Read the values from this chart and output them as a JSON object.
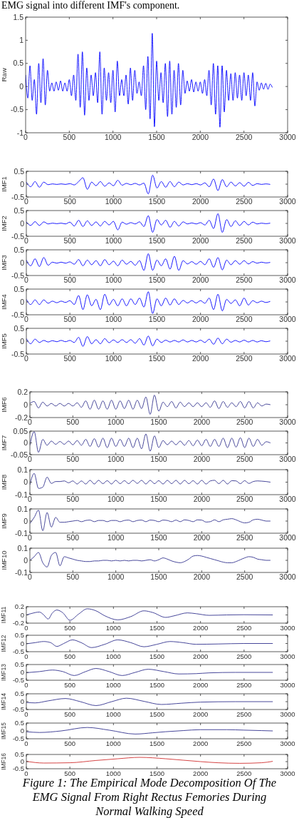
{
  "chart_data": [
    {
      "type": "line",
      "ylabel": "Raw",
      "annotations": [
        "EMG signal into different IMF's component."
      ],
      "color": "#0000ff",
      "xlim": [
        0,
        3000
      ],
      "ylim": [
        -1,
        1.5
      ],
      "xticks": [
        0,
        500,
        1000,
        1500,
        2000,
        2500,
        3000
      ],
      "yticks": [
        -1,
        -0.5,
        0,
        0.5,
        1,
        1.5
      ],
      "x": [
        0,
        25,
        50,
        75,
        100,
        125,
        150,
        175,
        200,
        225,
        250,
        275,
        300,
        325,
        350,
        375,
        400,
        425,
        450,
        475,
        500,
        525,
        550,
        575,
        600,
        625,
        650,
        675,
        700,
        725,
        750,
        775,
        800,
        825,
        850,
        875,
        900,
        925,
        950,
        975,
        1000,
        1025,
        1050,
        1075,
        1100,
        1125,
        1150,
        1175,
        1200,
        1225,
        1250,
        1275,
        1300,
        1325,
        1350,
        1375,
        1400,
        1425,
        1450,
        1475,
        1500,
        1525,
        1550,
        1575,
        1600,
        1625,
        1650,
        1675,
        1700,
        1725,
        1750,
        1775,
        1800,
        1825,
        1850,
        1875,
        1900,
        1925,
        1950,
        1975,
        2000,
        2025,
        2050,
        2075,
        2100,
        2125,
        2150,
        2175,
        2200,
        2225,
        2250,
        2275,
        2300,
        2325,
        2350,
        2375,
        2400,
        2425,
        2450,
        2475,
        2500,
        2525,
        2550,
        2575,
        2600,
        2625,
        2650,
        2675,
        2700,
        2725,
        2750,
        2775,
        2800,
        2825
      ],
      "values": [
        0.25,
        -0.25,
        0.45,
        -0.3,
        0.15,
        -0.6,
        0.5,
        -0.35,
        0.6,
        -0.4,
        0.35,
        -0.1,
        0.08,
        -0.1,
        0.1,
        -0.08,
        0.12,
        -0.1,
        0.08,
        -0.1,
        0.15,
        -0.2,
        0.25,
        -0.3,
        0.7,
        -0.45,
        0.75,
        -0.62,
        0.4,
        -0.3,
        0.25,
        -0.2,
        0.3,
        -0.35,
        0.75,
        -0.6,
        0.4,
        -0.3,
        0.3,
        -0.35,
        0.35,
        -0.55,
        0.55,
        -0.2,
        0.15,
        -0.2,
        0.25,
        -0.38,
        0.4,
        -0.3,
        0.35,
        -0.15,
        0.1,
        -0.2,
        0.45,
        -0.5,
        0.65,
        -0.7,
        1.15,
        -0.87,
        0.55,
        -0.3,
        0.3,
        -0.35,
        0.5,
        -0.65,
        0.55,
        -0.6,
        0.35,
        -0.45,
        0.5,
        -0.4,
        0.35,
        -0.15,
        0.12,
        -0.1,
        0.15,
        -0.12,
        0.1,
        -0.1,
        0.1,
        -0.15,
        0.15,
        -0.2,
        0.35,
        -0.4,
        0.5,
        -0.6,
        0.45,
        -0.88,
        0.45,
        -0.55,
        0.35,
        -0.3,
        0.28,
        -0.3,
        0.3,
        -0.25,
        0.25,
        -0.3,
        0.3,
        -0.2,
        0.25,
        -0.3,
        0.3,
        -0.42,
        0.1,
        -0.08,
        0.08,
        -0.06,
        0.07,
        -0.06,
        0.05,
        -0.02
      ]
    },
    {
      "type": "line",
      "ylabel": "IMF1",
      "color": "#0000ff",
      "xlim": [
        0,
        3000
      ],
      "ylim": [
        -0.5,
        0.5
      ],
      "xticks": [
        0,
        500,
        1000,
        1500,
        2000,
        2500,
        3000
      ],
      "yticks": [
        -0.5,
        0,
        0.5
      ],
      "x": [
        0,
        50,
        100,
        150,
        200,
        250,
        300,
        350,
        400,
        450,
        500,
        550,
        600,
        650,
        700,
        750,
        800,
        850,
        900,
        950,
        1000,
        1050,
        1100,
        1150,
        1200,
        1250,
        1300,
        1350,
        1400,
        1450,
        1500,
        1550,
        1600,
        1650,
        1700,
        1750,
        1800,
        1850,
        1900,
        1950,
        2000,
        2050,
        2100,
        2150,
        2200,
        2250,
        2300,
        2350,
        2400,
        2450,
        2500,
        2550,
        2600,
        2650,
        2700,
        2750,
        2800
      ],
      "values": [
        0.08,
        -0.1,
        0.1,
        -0.12,
        0.08,
        -0.02,
        0.01,
        -0.01,
        0.01,
        -0.01,
        0.02,
        -0.03,
        0.1,
        0.25,
        -0.2,
        0.08,
        -0.06,
        0.1,
        -0.08,
        0.05,
        -0.06,
        0.15,
        -0.04,
        0.03,
        -0.02,
        0.03,
        -0.03,
        0.04,
        -0.38,
        0.35,
        -0.15,
        0.1,
        -0.12,
        0.1,
        -0.1,
        0.08,
        -0.03,
        0.02,
        -0.02,
        0.02,
        -0.03,
        0.05,
        -0.1,
        0.2,
        -0.25,
        0.18,
        -0.1,
        0.08,
        -0.07,
        0.06,
        -0.08,
        0.07,
        -0.05,
        0.02,
        -0.01,
        0.01,
        -0.01
      ]
    },
    {
      "type": "line",
      "ylabel": "IMF2",
      "color": "#0000ff",
      "xlim": [
        0,
        3000
      ],
      "ylim": [
        -0.5,
        0.5
      ],
      "xticks": [
        0,
        500,
        1000,
        1500,
        2000,
        2500,
        3000
      ],
      "yticks": [
        -0.5,
        0,
        0.5
      ],
      "x": [
        0,
        50,
        100,
        150,
        200,
        250,
        300,
        350,
        400,
        450,
        500,
        550,
        600,
        650,
        700,
        750,
        800,
        850,
        900,
        950,
        1000,
        1050,
        1100,
        1150,
        1200,
        1250,
        1300,
        1350,
        1400,
        1450,
        1500,
        1550,
        1600,
        1650,
        1700,
        1750,
        1800,
        1850,
        1900,
        1950,
        2000,
        2050,
        2100,
        2150,
        2200,
        2250,
        2300,
        2350,
        2400,
        2450,
        2500,
        2550,
        2600,
        2650,
        2700,
        2750,
        2800
      ],
      "values": [
        0.06,
        -0.08,
        0.07,
        -0.08,
        0.06,
        -0.02,
        0.01,
        -0.01,
        0.01,
        -0.02,
        0.05,
        -0.1,
        0.12,
        -0.12,
        0.1,
        -0.08,
        0.06,
        -0.1,
        0.08,
        -0.06,
        0.08,
        -0.25,
        0.05,
        -0.03,
        0.03,
        -0.02,
        0.06,
        -0.12,
        0.3,
        -0.35,
        0.15,
        -0.06,
        0.12,
        -0.15,
        0.08,
        -0.1,
        0.06,
        -0.02,
        0.02,
        -0.02,
        0.03,
        -0.06,
        0.12,
        -0.2,
        0.38,
        -0.35,
        0.15,
        -0.12,
        0.1,
        -0.08,
        0.08,
        -0.06,
        0.05,
        -0.02,
        0.01,
        -0.01,
        0.01
      ]
    },
    {
      "type": "line",
      "ylabel": "IMF3",
      "color": "#0000ff",
      "xlim": [
        0,
        3000
      ],
      "ylim": [
        -0.5,
        0.5
      ],
      "xticks": [
        0,
        500,
        1000,
        1500,
        2000,
        2500,
        3000
      ],
      "yticks": [
        -0.5,
        0,
        0.5
      ],
      "x": [
        0,
        50,
        100,
        150,
        200,
        250,
        300,
        350,
        400,
        450,
        500,
        550,
        600,
        650,
        700,
        750,
        800,
        850,
        900,
        950,
        1000,
        1050,
        1100,
        1150,
        1200,
        1250,
        1300,
        1350,
        1400,
        1450,
        1500,
        1550,
        1600,
        1650,
        1700,
        1750,
        1800,
        1850,
        1900,
        1950,
        2000,
        2050,
        2100,
        2150,
        2200,
        2250,
        2300,
        2350,
        2400,
        2450,
        2500,
        2550,
        2600,
        2650,
        2700,
        2750,
        2800
      ],
      "values": [
        0.1,
        -0.12,
        0.15,
        -0.15,
        0.2,
        -0.1,
        0.02,
        -0.02,
        0.02,
        -0.02,
        0.03,
        -0.06,
        0.12,
        -0.12,
        0.1,
        -0.08,
        0.08,
        -0.12,
        0.12,
        -0.08,
        0.06,
        -0.12,
        0.1,
        -0.06,
        0.05,
        -0.1,
        0.08,
        -0.3,
        0.35,
        -0.3,
        0.1,
        -0.12,
        0.15,
        -0.25,
        0.25,
        -0.3,
        0.08,
        -0.05,
        0.04,
        -0.06,
        0.05,
        -0.08,
        0.15,
        -0.18,
        0.2,
        -0.28,
        0.1,
        -0.08,
        0.08,
        -0.06,
        0.08,
        -0.05,
        0.04,
        -0.02,
        0.02,
        -0.01,
        0.01
      ]
    },
    {
      "type": "line",
      "ylabel": "IMF4",
      "color": "#0000ff",
      "xlim": [
        0,
        3000
      ],
      "ylim": [
        -0.5,
        0.5
      ],
      "xticks": [
        0,
        500,
        1000,
        1500,
        2000,
        2500,
        3000
      ],
      "yticks": [
        -0.5,
        0,
        0.5
      ],
      "x": [
        0,
        50,
        100,
        150,
        200,
        250,
        300,
        350,
        400,
        450,
        500,
        550,
        600,
        650,
        700,
        750,
        800,
        850,
        900,
        950,
        1000,
        1050,
        1100,
        1150,
        1200,
        1250,
        1300,
        1350,
        1400,
        1450,
        1500,
        1550,
        1600,
        1650,
        1700,
        1750,
        1800,
        1850,
        1900,
        1950,
        2000,
        2050,
        2100,
        2150,
        2200,
        2250,
        2300,
        2350,
        2400,
        2450,
        2500,
        2550,
        2600,
        2650,
        2700,
        2750,
        2800
      ],
      "values": [
        0.1,
        -0.1,
        0.08,
        -0.1,
        0.08,
        -0.05,
        0.03,
        -0.03,
        0.03,
        -0.02,
        0.05,
        -0.1,
        0.25,
        -0.3,
        0.28,
        -0.15,
        0.1,
        -0.3,
        0.3,
        -0.12,
        0.1,
        -0.15,
        0.12,
        -0.15,
        0.12,
        -0.1,
        0.15,
        -0.2,
        0.4,
        -0.45,
        0.12,
        -0.15,
        0.15,
        -0.12,
        0.12,
        -0.1,
        0.06,
        -0.04,
        0.05,
        -0.04,
        0.05,
        -0.05,
        0.15,
        -0.3,
        0.3,
        -0.35,
        0.1,
        -0.06,
        0.08,
        -0.15,
        0.15,
        -0.12,
        0.05,
        -0.03,
        0.03,
        -0.02,
        0.02
      ]
    },
    {
      "type": "line",
      "ylabel": "IMF5",
      "color": "#0000ff",
      "xlim": [
        0,
        3000
      ],
      "ylim": [
        -0.5,
        0.5
      ],
      "xticks": [
        0,
        500,
        1000,
        1500,
        2000,
        2500,
        3000
      ],
      "yticks": [
        -0.5,
        0,
        0.5
      ],
      "x": [
        0,
        50,
        100,
        150,
        200,
        250,
        300,
        350,
        400,
        450,
        500,
        550,
        600,
        650,
        700,
        750,
        800,
        850,
        900,
        950,
        1000,
        1050,
        1100,
        1150,
        1200,
        1250,
        1300,
        1350,
        1400,
        1450,
        1500,
        1550,
        1600,
        1650,
        1700,
        1750,
        1800,
        1850,
        1900,
        1950,
        2000,
        2050,
        2100,
        2150,
        2200,
        2250,
        2300,
        2350,
        2400,
        2450,
        2500,
        2550,
        2600,
        2650,
        2700,
        2750,
        2800
      ],
      "values": [
        0.1,
        -0.1,
        0.08,
        -0.05,
        0.03,
        -0.03,
        0.02,
        -0.02,
        0.03,
        -0.02,
        0.03,
        -0.05,
        0.15,
        -0.2,
        0.18,
        -0.1,
        0.06,
        -0.1,
        0.1,
        -0.06,
        0.05,
        -0.05,
        0.06,
        -0.05,
        0.06,
        -0.08,
        0.1,
        -0.15,
        0.2,
        -0.18,
        0.08,
        -0.05,
        0.04,
        -0.03,
        0.03,
        -0.03,
        0.05,
        -0.03,
        0.03,
        -0.03,
        0.04,
        -0.05,
        0.08,
        -0.12,
        0.12,
        -0.1,
        0.08,
        -0.04,
        0.03,
        -0.03,
        0.04,
        -0.03,
        0.03,
        -0.03,
        0.02,
        -0.02,
        0.01
      ]
    },
    {
      "type": "line",
      "ylabel": "IMF6",
      "color": "#33338f",
      "xlim": [
        0,
        3000
      ],
      "ylim": [
        -0.2,
        0.2
      ],
      "xticks": [
        0,
        500,
        1000,
        1500,
        2000,
        2500,
        3000
      ],
      "yticks": [
        -0.2,
        0,
        0.2
      ],
      "x": [
        0,
        50,
        100,
        150,
        200,
        250,
        300,
        350,
        400,
        450,
        500,
        550,
        600,
        650,
        700,
        750,
        800,
        850,
        900,
        950,
        1000,
        1050,
        1100,
        1150,
        1200,
        1250,
        1300,
        1350,
        1400,
        1450,
        1500,
        1550,
        1600,
        1650,
        1700,
        1750,
        1800,
        1850,
        1900,
        1950,
        2000,
        2050,
        2100,
        2150,
        2200,
        2250,
        2300,
        2350,
        2400,
        2450,
        2500,
        2550,
        2600,
        2650,
        2700,
        2750,
        2800
      ],
      "values": [
        0.02,
        0.05,
        -0.05,
        0.04,
        -0.02,
        0.02,
        -0.02,
        0.02,
        -0.02,
        0.02,
        -0.02,
        0.03,
        -0.04,
        0.06,
        -0.07,
        0.07,
        -0.07,
        0.06,
        -0.07,
        0.07,
        -0.07,
        0.06,
        -0.06,
        0.07,
        -0.07,
        0.07,
        -0.06,
        0.12,
        -0.15,
        0.15,
        -0.1,
        0.04,
        -0.03,
        0.05,
        -0.05,
        0.04,
        -0.03,
        0.03,
        -0.03,
        0.03,
        -0.03,
        0.03,
        -0.04,
        0.06,
        -0.06,
        0.05,
        -0.04,
        0.03,
        -0.03,
        0.05,
        -0.05,
        0.05,
        -0.05,
        0.03,
        -0.02,
        0.01,
        0
      ]
    },
    {
      "type": "line",
      "ylabel": "IMF7",
      "color": "#33338f",
      "xlim": [
        0,
        3000
      ],
      "ylim": [
        -0.05,
        0.05
      ],
      "xticks": [
        0,
        500,
        1000,
        1500,
        2000,
        2500,
        3000
      ],
      "yticks": [
        -0.05,
        0,
        0.05
      ],
      "x": [
        0,
        50,
        100,
        150,
        200,
        250,
        300,
        350,
        400,
        450,
        500,
        550,
        600,
        650,
        700,
        750,
        800,
        850,
        900,
        950,
        1000,
        1050,
        1100,
        1150,
        1200,
        1250,
        1300,
        1350,
        1400,
        1450,
        1500,
        1550,
        1600,
        1650,
        1700,
        1750,
        1800,
        1850,
        1900,
        1950,
        2000,
        2050,
        2100,
        2150,
        2200,
        2250,
        2300,
        2350,
        2400,
        2450,
        2500,
        2550,
        2600,
        2650,
        2700,
        2750,
        2800
      ],
      "values": [
        -0.01,
        0.048,
        -0.04,
        0.015,
        -0.01,
        0.008,
        -0.006,
        0.006,
        -0.006,
        0.008,
        -0.008,
        0.01,
        -0.01,
        0.015,
        -0.015,
        0.018,
        -0.018,
        0.02,
        -0.02,
        0.02,
        -0.015,
        0.015,
        -0.015,
        0.02,
        -0.02,
        0.02,
        -0.025,
        0.038,
        -0.035,
        0.03,
        -0.02,
        0.01,
        -0.008,
        0.008,
        -0.008,
        0.008,
        -0.01,
        0.01,
        -0.012,
        0.012,
        -0.012,
        0.015,
        -0.015,
        0.015,
        -0.015,
        0.02,
        -0.02,
        0.02,
        -0.018,
        0.022,
        -0.02,
        0.02,
        -0.015,
        0.015,
        -0.01,
        0.005,
        0
      ]
    },
    {
      "type": "line",
      "ylabel": "IMF8",
      "color": "#33338f",
      "xlim": [
        0,
        3000
      ],
      "ylim": [
        -0.1,
        0.1
      ],
      "xticks": [
        0,
        500,
        1000,
        1500,
        2000,
        2500,
        3000
      ],
      "yticks": [
        -0.1,
        0,
        0.1
      ],
      "x": [
        0,
        50,
        100,
        150,
        200,
        250,
        300,
        350,
        400,
        450,
        500,
        550,
        600,
        650,
        700,
        750,
        800,
        850,
        900,
        950,
        1000,
        1050,
        1100,
        1150,
        1200,
        1250,
        1300,
        1350,
        1400,
        1450,
        1500,
        1550,
        1600,
        1650,
        1700,
        1750,
        1800,
        1850,
        1900,
        1950,
        2000,
        2050,
        2100,
        2150,
        2200,
        2250,
        2300,
        2350,
        2400,
        2450,
        2500,
        2550,
        2600,
        2650,
        2700,
        2750,
        2800
      ],
      "values": [
        -0.02,
        0.07,
        -0.05,
        -0.04,
        0.04,
        -0.01,
        0.005,
        0.005,
        0.01,
        -0.005,
        0.01,
        -0.015,
        0.01,
        -0.015,
        0.015,
        -0.015,
        0.015,
        -0.012,
        0.012,
        -0.015,
        0.015,
        -0.012,
        0.012,
        -0.012,
        0.015,
        -0.01,
        0.015,
        -0.015,
        0.015,
        -0.012,
        0.012,
        -0.015,
        0.015,
        -0.012,
        0.015,
        -0.015,
        0.015,
        -0.012,
        0.012,
        -0.015,
        0.015,
        -0.015,
        0.01,
        0.015,
        -0.012,
        0.015,
        -0.015,
        0.012,
        0.01,
        -0.012,
        0.012,
        -0.01,
        0.005,
        0.01,
        0.008,
        0.005,
        0
      ]
    },
    {
      "type": "line",
      "ylabel": "IMF9",
      "color": "#33338f",
      "xlim": [
        0,
        3000
      ],
      "ylim": [
        -0.1,
        0.1
      ],
      "xticks": [
        0,
        500,
        1000,
        1500,
        2000,
        2500,
        3000
      ],
      "yticks": [
        -0.1,
        0,
        0.1
      ],
      "x": [
        0,
        50,
        100,
        150,
        200,
        250,
        300,
        350,
        400,
        450,
        500,
        550,
        600,
        650,
        700,
        750,
        800,
        850,
        900,
        950,
        1000,
        1050,
        1100,
        1150,
        1200,
        1250,
        1300,
        1350,
        1400,
        1450,
        1500,
        1550,
        1600,
        1650,
        1700,
        1750,
        1800,
        1850,
        1900,
        1950,
        2000,
        2050,
        2100,
        2150,
        2200,
        2250,
        2300,
        2350,
        2400,
        2450,
        2500,
        2550,
        2600,
        2650,
        2700,
        2750,
        2800
      ],
      "values": [
        -0.02,
        0.03,
        0.09,
        -0.08,
        0.07,
        -0.05,
        0.03,
        -0.01,
        -0.01,
        -0.005,
        0,
        0.005,
        -0.005,
        0.005,
        0.008,
        -0.005,
        0.005,
        0.005,
        -0.005,
        0.005,
        0.005,
        -0.005,
        0.005,
        0.008,
        -0.005,
        0.005,
        0.008,
        -0.005,
        0.008,
        0.005,
        -0.005,
        0.008,
        0.005,
        -0.005,
        0.008,
        -0.005,
        0.01,
        0.005,
        -0.005,
        0.01,
        0.008,
        -0.008,
        -0.005,
        0.01,
        -0.005,
        0.01,
        0.015,
        0.02,
        0.01,
        -0.005,
        -0.015,
        -0.01,
        0.01,
        0.015,
        0.008,
        0,
        0
      ]
    },
    {
      "type": "line",
      "ylabel": "IMF10",
      "color": "#33338f",
      "xlim": [
        0,
        3000
      ],
      "ylim": [
        -0.1,
        0.1
      ],
      "xticks": [
        0,
        500,
        1000,
        1500,
        2000,
        2500,
        3000
      ],
      "yticks": [
        -0.1,
        0,
        0.1
      ],
      "x": [
        0,
        50,
        100,
        150,
        200,
        250,
        300,
        350,
        400,
        450,
        500,
        550,
        600,
        650,
        700,
        750,
        800,
        850,
        900,
        950,
        1000,
        1050,
        1100,
        1150,
        1200,
        1250,
        1300,
        1350,
        1400,
        1450,
        1500,
        1550,
        1600,
        1650,
        1700,
        1750,
        1800,
        1850,
        1900,
        1950,
        2000,
        2050,
        2100,
        2150,
        2200,
        2250,
        2300,
        2350,
        2400,
        2450,
        2500,
        2550,
        2600,
        2650,
        2700,
        2750,
        2800
      ],
      "values": [
        0,
        0.03,
        0.065,
        -0.02,
        -0.055,
        0.04,
        0.065,
        -0.045,
        0.03,
        0.02,
        0.01,
        0,
        -0.005,
        -0.01,
        -0.01,
        -0.005,
        -0.005,
        0,
        0,
        -0.005,
        0,
        -0.005,
        0,
        -0.005,
        0,
        0,
        -0.005,
        0,
        0.005,
        -0.005,
        0.005,
        0.02,
        0.01,
        -0.005,
        -0.015,
        -0.02,
        -0.01,
        0.01,
        0.035,
        0.04,
        0.035,
        0.025,
        0.015,
        0.005,
        -0.005,
        -0.015,
        -0.02,
        -0.02,
        -0.01,
        0.005,
        0.02,
        0.03,
        0.025,
        0.01,
        0.005,
        0,
        0
      ]
    },
    {
      "type": "line",
      "ylabel": "IMF11",
      "color": "#33338f",
      "xlim": [
        0,
        3000
      ],
      "ylim": [
        -0.2,
        0.2
      ],
      "xticks": [
        0,
        500,
        1000,
        1500,
        2000,
        2500,
        3000
      ],
      "yticks": [
        -0.2,
        0,
        0.2
      ],
      "x": [
        0,
        50,
        150,
        200,
        250,
        300,
        350,
        420,
        500,
        600,
        700,
        800,
        900,
        1050,
        1200,
        1350,
        1450,
        1600,
        1700,
        1850,
        1950,
        2100,
        2300,
        2500,
        2830
      ],
      "values": [
        0,
        0.03,
        0.07,
        0,
        -0.1,
        0.05,
        0.12,
        0.05,
        -0.13,
        0.02,
        0.15,
        0.1,
        -0.02,
        -0.12,
        -0.04,
        0.1,
        0.06,
        -0.06,
        -0.02,
        0.05,
        0.03,
        -0.01,
        0,
        0.005,
        0
      ]
    },
    {
      "type": "line",
      "ylabel": "IMF12",
      "color": "#33338f",
      "xlim": [
        0,
        3000
      ],
      "ylim": [
        -0.5,
        0.5
      ],
      "xticks": [
        0,
        500,
        1000,
        1500,
        2000,
        2500,
        3000
      ],
      "yticks": [
        -0.5,
        0,
        0.5
      ],
      "x": [
        0,
        100,
        200,
        280,
        350,
        430,
        530,
        630,
        750,
        900,
        1050,
        1200,
        1350,
        1500,
        1650,
        1800,
        1950,
        2200,
        2500,
        2830
      ],
      "values": [
        -0.02,
        0.05,
        0.12,
        0.05,
        -0.18,
        0,
        0.22,
        0.05,
        -0.25,
        -0.05,
        0.22,
        0.05,
        -0.2,
        -0.05,
        0.12,
        0.05,
        -0.05,
        -0.03,
        0,
        0
      ]
    },
    {
      "type": "line",
      "ylabel": "IMF13",
      "color": "#33338f",
      "xlim": [
        0,
        3000
      ],
      "ylim": [
        -0.5,
        0.5
      ],
      "xticks": [
        0,
        500,
        1000,
        1500,
        2000,
        2500,
        3000
      ],
      "yticks": [
        -0.5,
        0,
        0.5
      ],
      "x": [
        0,
        150,
        300,
        420,
        550,
        680,
        800,
        950,
        1100,
        1250,
        1400,
        1580,
        1750,
        1950,
        2100,
        2400,
        2830
      ],
      "values": [
        -0.02,
        0.05,
        0.15,
        0.05,
        -0.2,
        0.05,
        0.25,
        0.05,
        -0.2,
        0,
        0.2,
        0.05,
        -0.1,
        -0.08,
        -0.03,
        0,
        0
      ]
    },
    {
      "type": "line",
      "ylabel": "IMF14",
      "color": "#33338f",
      "xlim": [
        0,
        3000
      ],
      "ylim": [
        -0.5,
        0.5
      ],
      "xticks": [
        0,
        500,
        1000,
        1500,
        2000,
        2500,
        3000
      ],
      "yticks": [
        -0.5,
        0,
        0.5
      ],
      "x": [
        0,
        100,
        250,
        450,
        620,
        800,
        980,
        1150,
        1350,
        1550,
        1780,
        2000,
        2400,
        2830
      ],
      "values": [
        -0.05,
        -0.08,
        0.05,
        0.2,
        0,
        -0.25,
        0,
        0.22,
        0.02,
        -0.18,
        -0.1,
        -0.03,
        0,
        0
      ]
    },
    {
      "type": "line",
      "ylabel": "IMF15",
      "color": "#33338f",
      "xlim": [
        0,
        3000
      ],
      "ylim": [
        -0.5,
        0.5
      ],
      "xticks": [
        0,
        500,
        1000,
        1500,
        2000,
        2500,
        3000
      ],
      "yticks": [
        -0.5,
        0,
        0.5
      ],
      "x": [
        0,
        150,
        400,
        700,
        950,
        1250,
        1450,
        1600,
        1800,
        2000,
        2300,
        2500,
        2700,
        2830
      ],
      "values": [
        -0.05,
        -0.1,
        0,
        0.22,
        0.05,
        -0.2,
        -0.12,
        -0.05,
        0.02,
        0.08,
        0.08,
        0.05,
        0.02,
        0
      ]
    },
    {
      "type": "line",
      "ylabel": "IMF16",
      "color": "#d03030",
      "annotations": [
        "Figure 1: The Empirical Mode Decomposition Of The EMG Signal From Right Rectus Femories During Normal Walking Speed"
      ],
      "xlim": [
        0,
        3000
      ],
      "ylim": [
        -0.5,
        0.5
      ],
      "xticks": [
        0,
        500,
        1000,
        1500,
        2000,
        2500,
        3000
      ],
      "yticks": [
        -0.5,
        0,
        0.5
      ],
      "x": [
        0,
        200,
        500,
        800,
        1050,
        1300,
        1600,
        1800,
        2000,
        2200,
        2450,
        2700,
        2830
      ],
      "values": [
        0.02,
        -0.1,
        -0.08,
        0.08,
        0.2,
        0.3,
        0.2,
        0.1,
        0,
        -0.08,
        -0.12,
        -0.08,
        0.02
      ]
    }
  ]
}
